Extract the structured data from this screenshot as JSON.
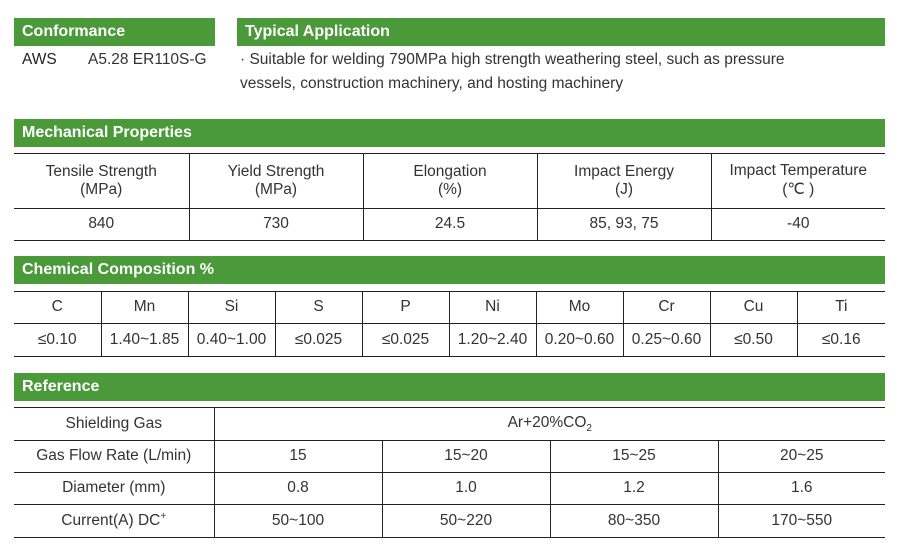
{
  "conformance": {
    "header": "Conformance",
    "standard": "AWS",
    "spec": "A5.28 ER110S-G"
  },
  "application": {
    "header": "Typical Application",
    "text_line1": "· Suitable for welding 790MPa high strength weathering steel, such as pressure",
    "text_line2": "vessels, construction machinery, and hosting machinery"
  },
  "mechanical": {
    "header": "Mechanical Properties",
    "columns": [
      {
        "name": "Tensile Strength",
        "unit": "(MPa)",
        "value": "840"
      },
      {
        "name": "Yield Strength",
        "unit": "(MPa)",
        "value": "730"
      },
      {
        "name": "Elongation",
        "unit": "(%)",
        "value": "24.5"
      },
      {
        "name": "Impact Energy",
        "unit": "(J)",
        "value": "85, 93, 75"
      },
      {
        "name": "Impact Temperature",
        "unit": "(℃ )",
        "value": "-40"
      }
    ]
  },
  "chemical": {
    "header": "Chemical Composition %",
    "elements": [
      "C",
      "Mn",
      "Si",
      "S",
      "P",
      "Ni",
      "Mo",
      "Cr",
      "Cu",
      "Ti"
    ],
    "values": [
      "≤0.10",
      "1.40~1.85",
      "0.40~1.00",
      "≤0.025",
      "≤0.025",
      "1.20~2.40",
      "0.20~0.60",
      "0.25~0.60",
      "≤0.50",
      "≤0.16"
    ]
  },
  "reference": {
    "header": "Reference",
    "shielding_gas_label": "Shielding Gas",
    "shielding_gas_value": "Ar+20%CO",
    "shielding_gas_sub": "2",
    "rows": [
      {
        "label": "Gas Flow Rate (L/min)",
        "values": [
          "15",
          "15~20",
          "15~25",
          "20~25"
        ]
      },
      {
        "label": "Diameter (mm)",
        "values": [
          "0.8",
          "1.0",
          "1.2",
          "1.6"
        ]
      },
      {
        "label": "Current(A) DC",
        "label_sup": "+",
        "values": [
          "50~100",
          "50~220",
          "80~350",
          "170~550"
        ]
      }
    ]
  }
}
